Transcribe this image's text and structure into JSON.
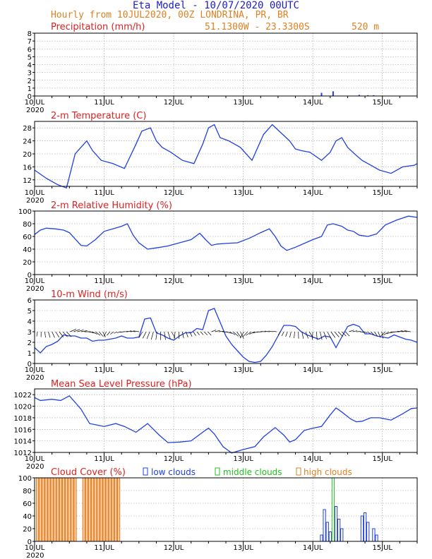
{
  "header": {
    "title": "Eta Model - 10/07/2020 00UTC",
    "subtitle": "Hourly from 10JUL2020, 00Z  LONDRINA, PR, BR",
    "coords": "51.1300W - 23.3300S",
    "elevation": "520  m"
  },
  "days": [
    "10JUL",
    "11JUL",
    "12JUL",
    "13JUL",
    "14JUL",
    "15JUL"
  ],
  "year_label": "2020",
  "colors": {
    "title": "#2020c0",
    "subtitle": "#e08020",
    "panel_title": "#e02020",
    "line": "#2040e0",
    "bar": "#2040e0",
    "low": "#2040e0",
    "mid": "#20c020",
    "high": "#e08020"
  },
  "chart_data": [
    {
      "id": "precip",
      "type": "bar",
      "title": "Precipitation (mm/h)",
      "ylim": [
        0,
        8
      ],
      "yticks": [
        0,
        1,
        2,
        3,
        4,
        5,
        6,
        7,
        8
      ],
      "x_unit": "hours since 10JUL2020 00Z",
      "x": [
        99,
        103,
        112,
        115,
        117
      ],
      "values": [
        0.4,
        0.6,
        0.15,
        0.1,
        0.1
      ]
    },
    {
      "id": "temperature",
      "type": "line",
      "title": "2-m Temperature (C)",
      "ylim": [
        10,
        30
      ],
      "yticks": [
        12,
        16,
        20,
        24,
        28
      ],
      "x": [
        0,
        4,
        8,
        11,
        14,
        18,
        20,
        23,
        27,
        31,
        35,
        37,
        40,
        42,
        44,
        47,
        51,
        55,
        58,
        60,
        62,
        64,
        67,
        71,
        75,
        79,
        82,
        85,
        88,
        90,
        92,
        95,
        99,
        102,
        104,
        106,
        108,
        111,
        113,
        116,
        119,
        123,
        127,
        131,
        132
      ],
      "values": [
        15,
        12.5,
        10.5,
        9.5,
        20,
        24,
        21,
        18,
        17,
        15.5,
        23,
        27,
        28,
        24,
        22,
        20.5,
        18,
        17,
        23,
        28,
        29,
        25,
        24,
        22,
        18,
        26,
        29,
        26.5,
        24,
        21.5,
        21,
        20.5,
        18,
        20.5,
        24,
        25,
        22,
        19.5,
        18,
        16.5,
        15,
        14,
        16,
        16.5,
        17
      ]
    },
    {
      "id": "humidity",
      "type": "line",
      "title": "2-m Relative Humidity (%)",
      "ylim": [
        0,
        100
      ],
      "yticks": [
        0,
        20,
        40,
        60,
        80,
        100
      ],
      "x": [
        0,
        2,
        4,
        7,
        10,
        12,
        14,
        16,
        18,
        21,
        24,
        27,
        30,
        32,
        34,
        36,
        39,
        42,
        46,
        50,
        54,
        57,
        59,
        61,
        63,
        66,
        70,
        74,
        78,
        81,
        83,
        85,
        87,
        90,
        93,
        96,
        99,
        101,
        103,
        106,
        108,
        110,
        112,
        115,
        118,
        121,
        125,
        129,
        132
      ],
      "values": [
        63,
        70,
        73,
        72,
        70,
        66,
        56,
        46,
        45,
        55,
        68,
        72,
        76,
        80,
        62,
        50,
        40,
        42,
        45,
        50,
        55,
        65,
        55,
        46,
        48,
        49,
        50,
        57,
        66,
        72,
        60,
        45,
        38,
        43,
        49,
        55,
        60,
        78,
        80,
        76,
        70,
        68,
        62,
        60,
        64,
        78,
        86,
        92,
        90
      ]
    },
    {
      "id": "wind",
      "type": "line",
      "title": "10-m Wind (m/s)",
      "ylim": [
        0,
        6
      ],
      "yticks": [
        0,
        1,
        2,
        3,
        4,
        5,
        6
      ],
      "x": [
        0,
        2,
        4,
        6,
        8,
        10,
        12,
        14,
        16,
        18,
        20,
        22,
        24,
        26,
        28,
        30,
        32,
        34,
        36,
        38,
        40,
        42,
        44,
        46,
        48,
        50,
        52,
        54,
        56,
        58,
        60,
        62,
        64,
        66,
        68,
        70,
        72,
        74,
        76,
        78,
        80,
        82,
        84,
        86,
        88,
        90,
        92,
        94,
        96,
        98,
        100,
        102,
        104,
        106,
        108,
        110,
        112,
        114,
        116,
        118,
        120,
        122,
        124,
        126,
        128,
        130,
        132
      ],
      "values": [
        1.5,
        1.0,
        1.6,
        1.8,
        2.1,
        2.7,
        2.6,
        2.6,
        2.4,
        2.4,
        2.1,
        2.2,
        2.2,
        2.3,
        2.4,
        2.6,
        2.4,
        2.4,
        2.5,
        4.2,
        4.3,
        2.9,
        2.7,
        2.4,
        2.2,
        2.6,
        2.9,
        2.9,
        3.3,
        3.2,
        5.0,
        5.2,
        3.9,
        2.6,
        1.8,
        1.2,
        0.6,
        0.2,
        0.1,
        0.2,
        0.8,
        1.6,
        2.6,
        3.6,
        3.6,
        3.5,
        3.0,
        2.7,
        2.5,
        2.3,
        2.6,
        2.5,
        1.5,
        2.5,
        3.5,
        3.7,
        3.5,
        2.8,
        2.8,
        2.6,
        2.5,
        2.4,
        2.7,
        2.5,
        2.3,
        2.2,
        2.0
      ]
    },
    {
      "id": "pressure",
      "type": "line",
      "title": "Mean Sea Level Pressure (hPa)",
      "ylim": [
        1012,
        1023
      ],
      "yticks": [
        1012,
        1014,
        1016,
        1018,
        1020,
        1022
      ],
      "x": [
        0,
        2,
        6,
        9,
        12,
        16,
        19,
        24,
        28,
        31,
        35,
        39,
        43,
        46,
        50,
        54,
        58,
        60,
        62,
        65,
        68,
        72,
        76,
        79,
        83,
        86,
        88,
        90,
        93,
        96,
        99,
        102,
        104,
        106,
        109,
        111,
        113,
        116,
        119,
        123,
        127,
        130,
        132
      ],
      "values": [
        1021.5,
        1021,
        1021.2,
        1021,
        1021.8,
        1019.5,
        1017,
        1016.5,
        1017,
        1016.5,
        1015.5,
        1017,
        1015,
        1013.7,
        1013.8,
        1014,
        1015.5,
        1016.2,
        1015.2,
        1013,
        1011.9,
        1012.5,
        1013,
        1014.7,
        1016.3,
        1015,
        1013.8,
        1014.2,
        1015.8,
        1016.2,
        1016.5,
        1018.5,
        1019.7,
        1019,
        1017.8,
        1017.3,
        1017.4,
        1018,
        1018,
        1017.6,
        1018.7,
        1019.6,
        1019.7
      ]
    },
    {
      "id": "clouds",
      "type": "bar",
      "title": "Cloud Cover (%)",
      "legend": [
        "low clouds",
        "middle clouds",
        "high clouds"
      ],
      "ylim": [
        0,
        100
      ],
      "yticks": [
        0,
        20,
        40,
        60,
        80,
        100
      ],
      "high_x": [
        1,
        2,
        3,
        4,
        5,
        6,
        7,
        8,
        9,
        10,
        11,
        12,
        13,
        14,
        17,
        18,
        19,
        20,
        21,
        22,
        23,
        24,
        25,
        26,
        27,
        28,
        29
      ],
      "high_values": [
        100,
        100,
        100,
        100,
        100,
        100,
        100,
        100,
        100,
        100,
        100,
        100,
        100,
        100,
        100,
        100,
        100,
        100,
        100,
        100,
        100,
        100,
        100,
        100,
        100,
        100,
        100
      ],
      "low_x": [
        99,
        100,
        101,
        102,
        104,
        105,
        106,
        113,
        114,
        115,
        117,
        118
      ],
      "low_values": [
        10,
        50,
        30,
        15,
        55,
        35,
        20,
        40,
        45,
        30,
        20,
        10
      ],
      "mid_x": [
        103
      ],
      "mid_values": [
        100
      ]
    }
  ]
}
